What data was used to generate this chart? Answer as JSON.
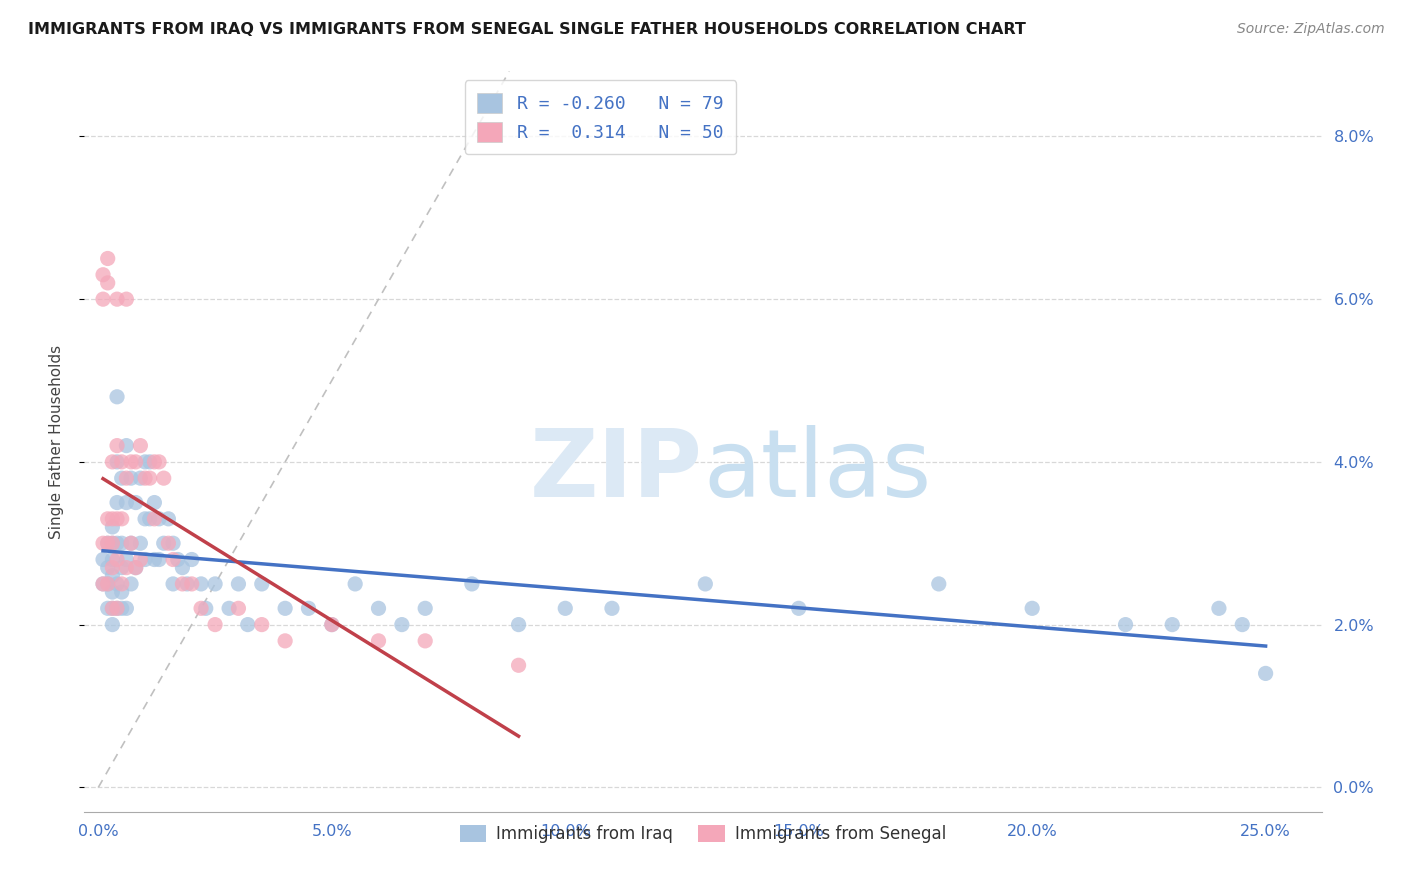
{
  "title": "IMMIGRANTS FROM IRAQ VS IMMIGRANTS FROM SENEGAL SINGLE FATHER HOUSEHOLDS CORRELATION CHART",
  "source": "Source: ZipAtlas.com",
  "ylabel_label": "Single Father Households",
  "xlim": [
    -0.003,
    0.262
  ],
  "ylim": [
    -0.003,
    0.088
  ],
  "iraq_color": "#a8c4e0",
  "senegal_color": "#f4a7b9",
  "iraq_line_color": "#4472c4",
  "senegal_line_color": "#c0404a",
  "iraq_R": -0.26,
  "iraq_N": 79,
  "senegal_R": 0.314,
  "senegal_N": 50,
  "iraq_x": [
    0.001,
    0.001,
    0.002,
    0.002,
    0.002,
    0.002,
    0.003,
    0.003,
    0.003,
    0.003,
    0.003,
    0.003,
    0.003,
    0.004,
    0.004,
    0.004,
    0.004,
    0.004,
    0.004,
    0.005,
    0.005,
    0.005,
    0.005,
    0.005,
    0.006,
    0.006,
    0.006,
    0.006,
    0.007,
    0.007,
    0.007,
    0.008,
    0.008,
    0.009,
    0.009,
    0.01,
    0.01,
    0.01,
    0.011,
    0.011,
    0.012,
    0.012,
    0.013,
    0.013,
    0.014,
    0.015,
    0.016,
    0.016,
    0.017,
    0.018,
    0.019,
    0.02,
    0.022,
    0.023,
    0.025,
    0.028,
    0.03,
    0.032,
    0.035,
    0.04,
    0.045,
    0.05,
    0.055,
    0.06,
    0.065,
    0.07,
    0.08,
    0.09,
    0.1,
    0.11,
    0.13,
    0.15,
    0.18,
    0.2,
    0.22,
    0.23,
    0.24,
    0.245,
    0.25
  ],
  "iraq_y": [
    0.028,
    0.025,
    0.03,
    0.027,
    0.025,
    0.022,
    0.032,
    0.03,
    0.028,
    0.026,
    0.024,
    0.022,
    0.02,
    0.048,
    0.04,
    0.035,
    0.03,
    0.025,
    0.022,
    0.038,
    0.03,
    0.027,
    0.024,
    0.022,
    0.042,
    0.035,
    0.028,
    0.022,
    0.038,
    0.03,
    0.025,
    0.035,
    0.027,
    0.038,
    0.03,
    0.04,
    0.033,
    0.028,
    0.04,
    0.033,
    0.035,
    0.028,
    0.033,
    0.028,
    0.03,
    0.033,
    0.03,
    0.025,
    0.028,
    0.027,
    0.025,
    0.028,
    0.025,
    0.022,
    0.025,
    0.022,
    0.025,
    0.02,
    0.025,
    0.022,
    0.022,
    0.02,
    0.025,
    0.022,
    0.02,
    0.022,
    0.025,
    0.02,
    0.022,
    0.022,
    0.025,
    0.022,
    0.025,
    0.022,
    0.02,
    0.02,
    0.022,
    0.02,
    0.014
  ],
  "senegal_x": [
    0.001,
    0.001,
    0.001,
    0.001,
    0.002,
    0.002,
    0.002,
    0.002,
    0.002,
    0.003,
    0.003,
    0.003,
    0.003,
    0.003,
    0.004,
    0.004,
    0.004,
    0.004,
    0.004,
    0.005,
    0.005,
    0.005,
    0.006,
    0.006,
    0.006,
    0.007,
    0.007,
    0.008,
    0.008,
    0.009,
    0.009,
    0.01,
    0.011,
    0.012,
    0.012,
    0.013,
    0.014,
    0.015,
    0.016,
    0.018,
    0.02,
    0.022,
    0.025,
    0.03,
    0.035,
    0.04,
    0.05,
    0.06,
    0.07,
    0.09
  ],
  "senegal_y": [
    0.063,
    0.06,
    0.03,
    0.025,
    0.065,
    0.062,
    0.033,
    0.03,
    0.025,
    0.04,
    0.033,
    0.03,
    0.027,
    0.022,
    0.06,
    0.042,
    0.033,
    0.028,
    0.022,
    0.04,
    0.033,
    0.025,
    0.06,
    0.038,
    0.027,
    0.04,
    0.03,
    0.04,
    0.027,
    0.042,
    0.028,
    0.038,
    0.038,
    0.04,
    0.033,
    0.04,
    0.038,
    0.03,
    0.028,
    0.025,
    0.025,
    0.022,
    0.02,
    0.022,
    0.02,
    0.018,
    0.02,
    0.018,
    0.018,
    0.015
  ]
}
